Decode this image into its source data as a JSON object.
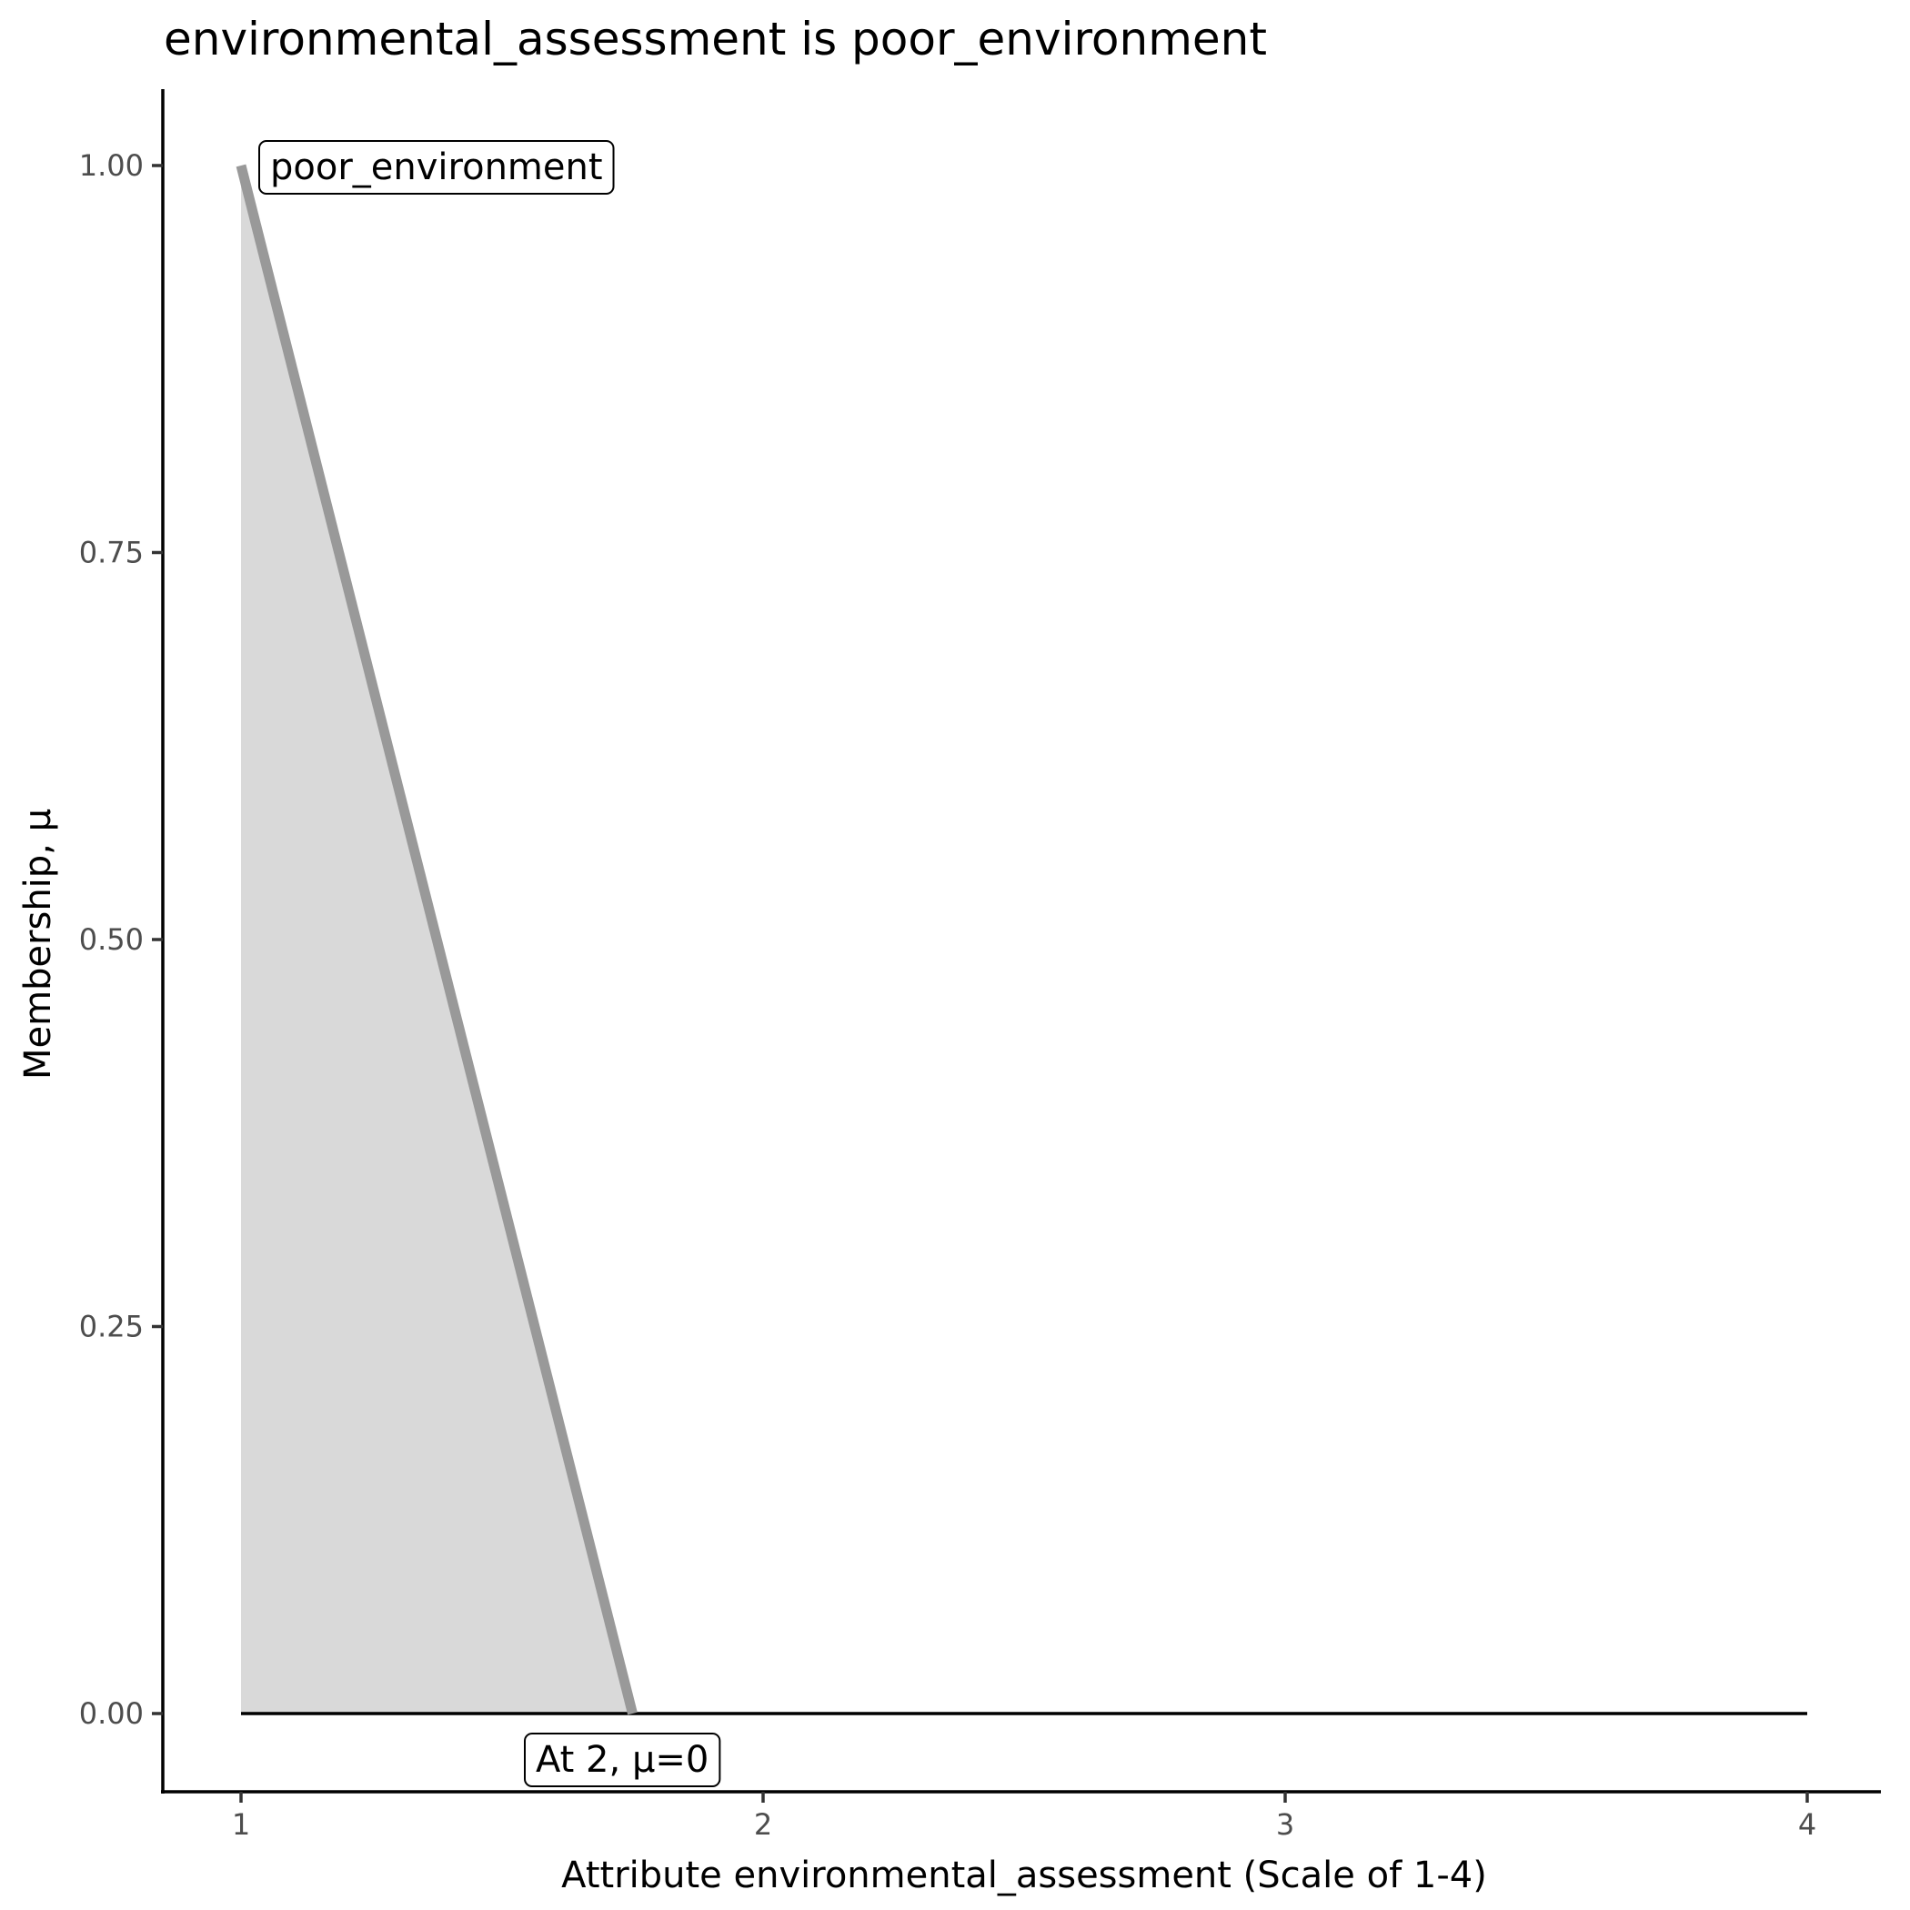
{
  "chart_data": {
    "type": "area",
    "title": "environmental_assessment is poor_environment",
    "xlabel": "Attribute environmental_assessment (Scale of 1-4)",
    "ylabel": "Membership, μ",
    "xlim": [
      0.85,
      4.14
    ],
    "ylim": [
      -0.05,
      1.05
    ],
    "x_ticks": [
      1,
      2,
      3,
      4
    ],
    "x_tick_labels": [
      "1",
      "2",
      "3",
      "4"
    ],
    "y_ticks": [
      0,
      0.25,
      0.5,
      0.75,
      1
    ],
    "y_tick_labels": [
      "0.00",
      "0.25",
      "0.50",
      "0.75",
      "1.00"
    ],
    "series": [
      {
        "x": [
          1,
          1.75
        ],
        "y": [
          1,
          0
        ],
        "color": "#999999",
        "fill": "#d9d9d9"
      }
    ],
    "baseline": {
      "x": [
        1,
        4
      ],
      "y": [
        0,
        0
      ],
      "color": "#000000"
    },
    "annotations": [
      {
        "text": "poor_environment",
        "x": 1.05,
        "y": 1
      },
      {
        "text": "At 2, μ=0",
        "x": 1.75,
        "y": -0.05
      }
    ],
    "grid": false
  }
}
